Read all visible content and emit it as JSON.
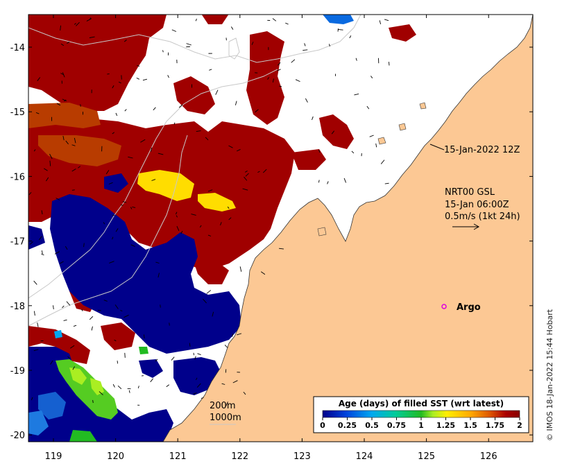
{
  "map": {
    "region": "Kimberley coast, north-western Australia",
    "lat_ticks": [
      "-14",
      "-15",
      "-16",
      "-17",
      "-18",
      "-19",
      "-20"
    ],
    "lon_ticks": [
      "119",
      "120",
      "121",
      "122",
      "123",
      "124",
      "125",
      "126"
    ]
  },
  "annotations": {
    "timestamp": "15-Jan-2022 12Z",
    "currents_title": "NRT00 GSL",
    "currents_time": "15-Jan 06:00Z",
    "currents_scale": "0.5m/s (1kt 24h)",
    "argo_label": "Argo",
    "depth_200": "200m",
    "depth_1000": "1000m"
  },
  "legend": {
    "title": "Age (days) of filled SST (wrt latest)",
    "ticks": [
      "0",
      "0.25",
      "0.5",
      "0.75",
      "1",
      "1.25",
      "1.5",
      "1.75",
      "2"
    ],
    "colors": [
      "#00008b",
      "#0044dd",
      "#00a8f0",
      "#00cc99",
      "#22bb22",
      "#aaee22",
      "#ffee00",
      "#ffaa00",
      "#dd5500",
      "#aa0000",
      "#880000"
    ]
  },
  "credit": "© IMOS 18-Jan-2022 15:44 Hobart",
  "colors": {
    "land": "#fcc894",
    "old_sst": "#a00000",
    "orange_sst": "#b83c00",
    "yellow_sst": "#ffdd00",
    "navy_sst": "#00008b",
    "blue_sst": "#1560d0",
    "green_sst": "#55cc22"
  }
}
